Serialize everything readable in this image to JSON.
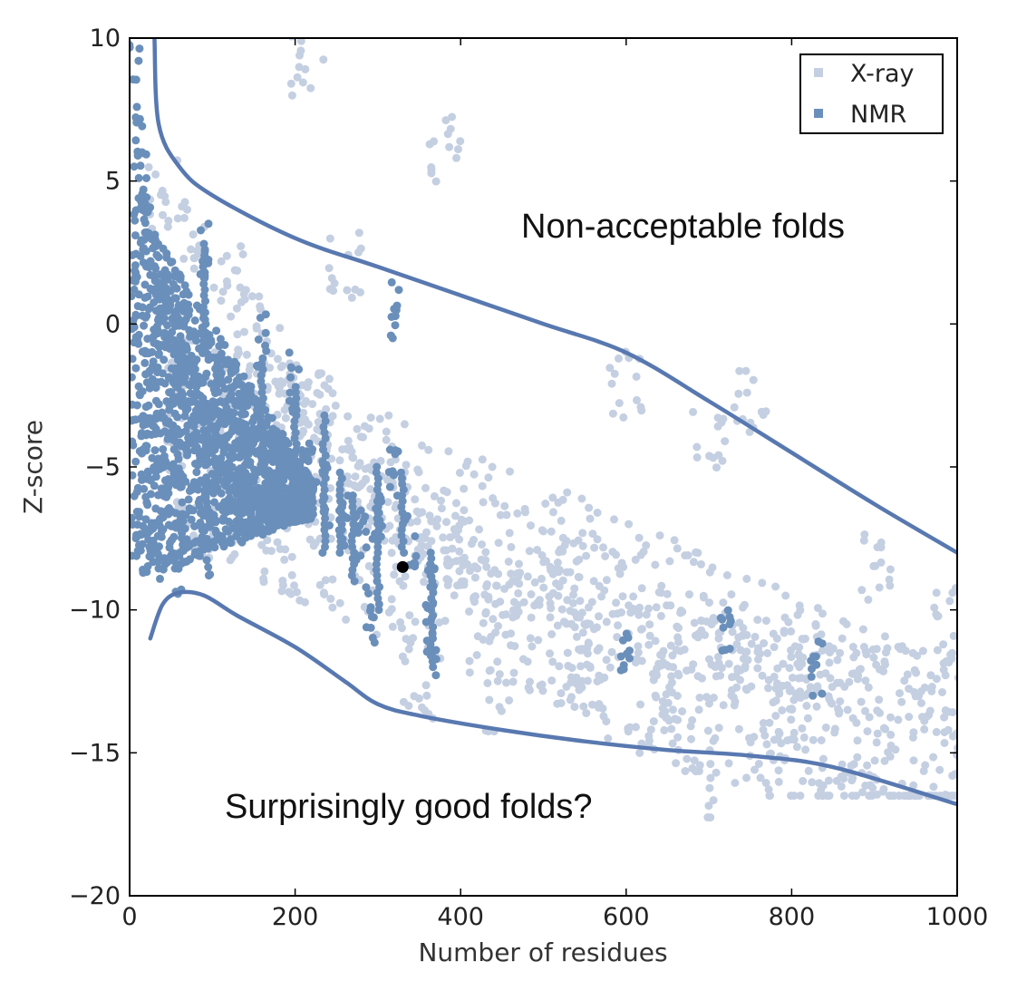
{
  "chart_data": {
    "type": "scatter",
    "title": "",
    "xlabel": "Number of residues",
    "ylabel": "Z-score",
    "xlim": [
      0,
      1000
    ],
    "ylim": [
      -20,
      10
    ],
    "x_ticks": [
      "0",
      "200",
      "400",
      "600",
      "800",
      "1000"
    ],
    "y_ticks": [
      "10",
      "5",
      "0",
      "−5",
      "−10",
      "−15",
      "−20"
    ],
    "grid": false,
    "legend": {
      "placement": "top-right",
      "entries": [
        {
          "label": "X-ray",
          "color": "#c4cfe2"
        },
        {
          "label": "NMR",
          "color": "#6a8fba"
        }
      ]
    },
    "series": [
      {
        "name": "X-ray",
        "color": "#c4cfe2",
        "representative_points": [
          [
            40,
            4.5
          ],
          [
            80,
            3.0
          ],
          [
            120,
            1.5
          ],
          [
            150,
            0.0
          ],
          [
            180,
            -1.0
          ],
          [
            200,
            -2.5
          ],
          [
            230,
            -3.0
          ],
          [
            250,
            -4.5
          ],
          [
            280,
            -5.0
          ],
          [
            300,
            -6.0
          ],
          [
            320,
            -6.5
          ],
          [
            350,
            -7.0
          ],
          [
            380,
            -8.0
          ],
          [
            400,
            -8.0
          ],
          [
            420,
            -9.0
          ],
          [
            450,
            -9.5
          ],
          [
            480,
            -10.0
          ],
          [
            500,
            -9.0
          ],
          [
            530,
            -9.5
          ],
          [
            560,
            -10.5
          ],
          [
            600,
            -10.5
          ],
          [
            630,
            -11.0
          ],
          [
            660,
            -11.0
          ],
          [
            700,
            -11.5
          ],
          [
            730,
            -11.5
          ],
          [
            760,
            -11.5
          ],
          [
            800,
            -12.0
          ],
          [
            830,
            -12.0
          ],
          [
            860,
            -12.5
          ],
          [
            900,
            -12.5
          ],
          [
            950,
            -12.5
          ],
          [
            1000,
            -12.5
          ],
          [
            600,
            -2.0
          ],
          [
            700,
            -4.0
          ],
          [
            750,
            -2.5
          ],
          [
            900,
            -8.5
          ],
          [
            800,
            -13.5
          ],
          [
            690,
            -16.0
          ],
          [
            380,
            6.0
          ],
          [
            215,
            9.2
          ],
          [
            260,
            2.0
          ],
          [
            350,
            -12.5
          ],
          [
            450,
            -13.0
          ],
          [
            550,
            -12.0
          ],
          [
            650,
            -13.5
          ],
          [
            900,
            -15.5
          ],
          [
            1000,
            -14.5
          ],
          [
            990,
            -10.5
          ]
        ]
      },
      {
        "name": "NMR",
        "color": "#6a8fba",
        "representative_points": [
          [
            5,
            9.5
          ],
          [
            10,
            6.5
          ],
          [
            15,
            5.0
          ],
          [
            20,
            3.5
          ],
          [
            30,
            2.0
          ],
          [
            40,
            1.0
          ],
          [
            50,
            0.0
          ],
          [
            60,
            -1.0
          ],
          [
            70,
            -2.0
          ],
          [
            80,
            -3.0
          ],
          [
            90,
            -4.0
          ],
          [
            100,
            -4.5
          ],
          [
            110,
            -5.0
          ],
          [
            120,
            -5.5
          ],
          [
            130,
            -6.0
          ],
          [
            140,
            -6.0
          ],
          [
            150,
            -6.5
          ],
          [
            160,
            -6.0
          ],
          [
            170,
            -6.5
          ],
          [
            180,
            -6.0
          ],
          [
            190,
            -6.0
          ],
          [
            200,
            -5.5
          ],
          [
            210,
            -5.5
          ],
          [
            220,
            -5.0
          ],
          [
            90,
            2.5
          ],
          [
            160,
            -0.5
          ],
          [
            200,
            -2.0
          ],
          [
            240,
            -6.0
          ],
          [
            260,
            -7.0
          ],
          [
            280,
            -7.5
          ],
          [
            300,
            -7.0
          ],
          [
            320,
            -5.0
          ],
          [
            340,
            -7.5
          ],
          [
            365,
            -9.5
          ],
          [
            365,
            -11.5
          ],
          [
            720,
            -10.5
          ],
          [
            830,
            -12.0
          ],
          [
            290,
            -10.3
          ],
          [
            600,
            -11.2
          ],
          [
            320,
            0.6
          ],
          [
            30,
            -8.0
          ],
          [
            60,
            -8.5
          ],
          [
            100,
            -8.0
          ]
        ]
      },
      {
        "name": "",
        "color": "#000000",
        "representative_points": [
          [
            330,
            -8.5
          ]
        ]
      }
    ],
    "envelope_curves": [
      {
        "color": "#5878b0",
        "points": [
          [
            30,
            10.0
          ],
          [
            35,
            7.0
          ],
          [
            60,
            5.5
          ],
          [
            100,
            4.5
          ],
          [
            200,
            3.0
          ],
          [
            300,
            2.0
          ],
          [
            400,
            1.0
          ],
          [
            500,
            0.0
          ],
          [
            600,
            -1.0
          ],
          [
            700,
            -2.7
          ],
          [
            800,
            -4.5
          ],
          [
            900,
            -6.3
          ],
          [
            1000,
            -8.0
          ]
        ]
      },
      {
        "color": "#5878b0",
        "points": [
          [
            25,
            -11.0
          ],
          [
            40,
            -9.8
          ],
          [
            60,
            -9.4
          ],
          [
            90,
            -9.5
          ],
          [
            130,
            -10.2
          ],
          [
            200,
            -11.3
          ],
          [
            260,
            -12.5
          ],
          [
            300,
            -13.3
          ],
          [
            350,
            -13.7
          ],
          [
            450,
            -14.2
          ],
          [
            550,
            -14.6
          ],
          [
            650,
            -14.9
          ],
          [
            750,
            -15.1
          ],
          [
            850,
            -15.5
          ],
          [
            1000,
            -16.8
          ]
        ]
      }
    ],
    "annotations": [
      {
        "text": "Non-acceptable folds",
        "x": 480,
        "y": 3.3
      },
      {
        "text": "Surprisingly good folds?",
        "x": 115,
        "y": -16.9
      }
    ]
  }
}
